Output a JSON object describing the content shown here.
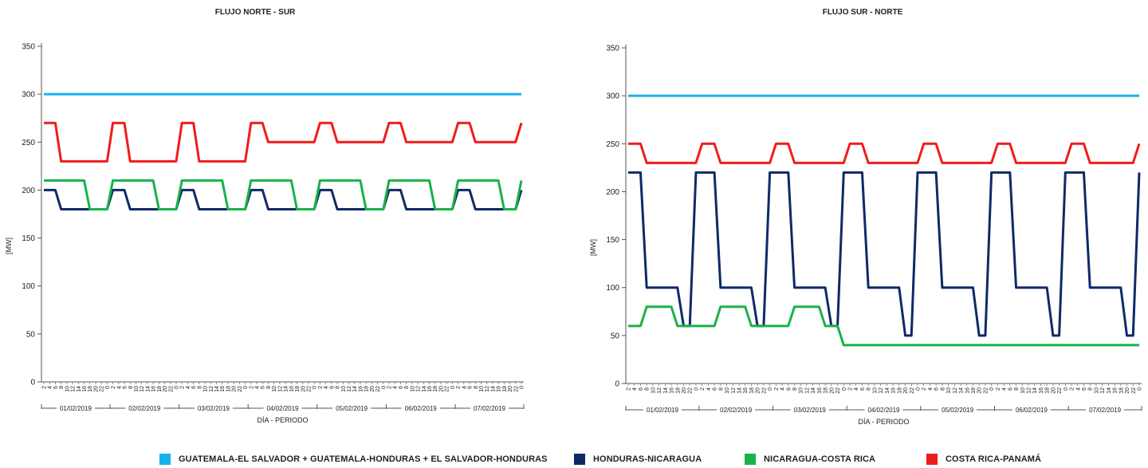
{
  "colors": {
    "guate_sal": "#17b1ec",
    "hond_nic": "#0e2a66",
    "nic_cr": "#19b24a",
    "cr_pan": "#ef1c1c",
    "axis": "#555555",
    "text": "#222222"
  },
  "legend": [
    {
      "label": "GUATEMALA-EL SALVADOR + GUATEMALA-HONDURAS + EL SALVADOR-HONDURAS",
      "color": "#17b1ec",
      "icon": "square-swatch"
    },
    {
      "label": "HONDURAS-NICARAGUA",
      "color": "#0e2a66",
      "icon": "square-swatch"
    },
    {
      "label": "NICARAGUA-COSTA RICA",
      "color": "#19b24a",
      "icon": "square-swatch"
    },
    {
      "label": "COSTA RICA-PANAMÁ",
      "color": "#ef1c1c",
      "icon": "square-swatch"
    }
  ],
  "chart_data": [
    {
      "type": "line",
      "title": "FLUJO NORTE - SUR",
      "xlabel": "DÍA - PERIODO",
      "ylabel": "[MW]",
      "ylim": [
        0,
        350
      ],
      "yticks": [
        0,
        50,
        100,
        150,
        200,
        250,
        300,
        350
      ],
      "grid": false,
      "hours": [
        "2",
        "4",
        "6",
        "8",
        "10",
        "12",
        "14",
        "16",
        "18",
        "20",
        "22",
        "0"
      ],
      "days": [
        "01/02/2019",
        "02/02/2019",
        "03/02/2019",
        "04/02/2019",
        "05/02/2019",
        "06/02/2019",
        "07/02/2019"
      ],
      "series": [
        {
          "name": "GUATEMALA-EL SALVADOR + GUATEMALA-HONDURAS + EL SALVADOR-HONDURAS",
          "color": "#17b1ec",
          "values": [
            300,
            300,
            300,
            300,
            300,
            300,
            300,
            300,
            300,
            300,
            300,
            300,
            300,
            300,
            300,
            300,
            300,
            300,
            300,
            300,
            300,
            300,
            300,
            300,
            300,
            300,
            300,
            300,
            300,
            300,
            300,
            300,
            300,
            300,
            300,
            300,
            300,
            300,
            300,
            300,
            300,
            300,
            300,
            300,
            300,
            300,
            300,
            300,
            300,
            300,
            300,
            300,
            300,
            300,
            300,
            300,
            300,
            300,
            300,
            300,
            300,
            300,
            300,
            300,
            300,
            300,
            300,
            300,
            300,
            300,
            300,
            300,
            300,
            300,
            300,
            300,
            300,
            300,
            300,
            300,
            300,
            300,
            300,
            300
          ]
        },
        {
          "name": "HONDURAS-NICARAGUA",
          "color": "#0e2a66",
          "values": [
            200,
            200,
            200,
            180,
            180,
            180,
            180,
            180,
            180,
            180,
            180,
            180,
            200,
            200,
            200,
            180,
            180,
            180,
            180,
            180,
            180,
            180,
            180,
            180,
            200,
            200,
            200,
            180,
            180,
            180,
            180,
            180,
            180,
            180,
            180,
            180,
            200,
            200,
            200,
            180,
            180,
            180,
            180,
            180,
            180,
            180,
            180,
            180,
            200,
            200,
            200,
            180,
            180,
            180,
            180,
            180,
            180,
            180,
            180,
            180,
            200,
            200,
            200,
            180,
            180,
            180,
            180,
            180,
            180,
            180,
            180,
            180,
            200,
            200,
            200,
            180,
            180,
            180,
            180,
            180,
            180,
            180,
            180,
            200
          ]
        },
        {
          "name": "NICARAGUA-COSTA RICA",
          "color": "#19b24a",
          "values": [
            210,
            210,
            210,
            210,
            210,
            210,
            210,
            210,
            180,
            180,
            180,
            180,
            210,
            210,
            210,
            210,
            210,
            210,
            210,
            210,
            180,
            180,
            180,
            180,
            210,
            210,
            210,
            210,
            210,
            210,
            210,
            210,
            180,
            180,
            180,
            180,
            210,
            210,
            210,
            210,
            210,
            210,
            210,
            210,
            180,
            180,
            180,
            180,
            210,
            210,
            210,
            210,
            210,
            210,
            210,
            210,
            180,
            180,
            180,
            180,
            210,
            210,
            210,
            210,
            210,
            210,
            210,
            210,
            180,
            180,
            180,
            180,
            210,
            210,
            210,
            210,
            210,
            210,
            210,
            210,
            180,
            180,
            180,
            210
          ]
        },
        {
          "name": "COSTA RICA-PANAMÁ",
          "color": "#ef1c1c",
          "values": [
            270,
            270,
            270,
            230,
            230,
            230,
            230,
            230,
            230,
            230,
            230,
            230,
            270,
            270,
            270,
            230,
            230,
            230,
            230,
            230,
            230,
            230,
            230,
            230,
            270,
            270,
            270,
            230,
            230,
            230,
            230,
            230,
            230,
            230,
            230,
            230,
            270,
            270,
            270,
            250,
            250,
            250,
            250,
            250,
            250,
            250,
            250,
            250,
            270,
            270,
            270,
            250,
            250,
            250,
            250,
            250,
            250,
            250,
            250,
            250,
            270,
            270,
            270,
            250,
            250,
            250,
            250,
            250,
            250,
            250,
            250,
            250,
            270,
            270,
            270,
            250,
            250,
            250,
            250,
            250,
            250,
            250,
            250,
            270
          ]
        }
      ]
    },
    {
      "type": "line",
      "title": "FLUJO SUR - NORTE",
      "xlabel": "DÍA - PERIODO",
      "ylabel": "[MW]",
      "ylim": [
        0,
        350
      ],
      "yticks": [
        0,
        50,
        100,
        150,
        200,
        250,
        300,
        350
      ],
      "grid": false,
      "hours": [
        "2",
        "4",
        "6",
        "8",
        "10",
        "12",
        "14",
        "16",
        "18",
        "20",
        "22",
        "0"
      ],
      "days": [
        "01/02/2019",
        "02/02/2019",
        "03/02/2019",
        "04/02/2019",
        "05/02/2019",
        "06/02/2019",
        "07/02/2019"
      ],
      "series": [
        {
          "name": "GUATEMALA-EL SALVADOR + GUATEMALA-HONDURAS + EL SALVADOR-HONDURAS",
          "color": "#17b1ec",
          "values": [
            300,
            300,
            300,
            300,
            300,
            300,
            300,
            300,
            300,
            300,
            300,
            300,
            300,
            300,
            300,
            300,
            300,
            300,
            300,
            300,
            300,
            300,
            300,
            300,
            300,
            300,
            300,
            300,
            300,
            300,
            300,
            300,
            300,
            300,
            300,
            300,
            300,
            300,
            300,
            300,
            300,
            300,
            300,
            300,
            300,
            300,
            300,
            300,
            300,
            300,
            300,
            300,
            300,
            300,
            300,
            300,
            300,
            300,
            300,
            300,
            300,
            300,
            300,
            300,
            300,
            300,
            300,
            300,
            300,
            300,
            300,
            300,
            300,
            300,
            300,
            300,
            300,
            300,
            300,
            300,
            300,
            300,
            300,
            300
          ]
        },
        {
          "name": "HONDURAS-NICARAGUA",
          "color": "#0e2a66",
          "values": [
            220,
            220,
            220,
            100,
            100,
            100,
            100,
            100,
            100,
            60,
            60,
            220,
            220,
            220,
            220,
            100,
            100,
            100,
            100,
            100,
            100,
            60,
            60,
            220,
            220,
            220,
            220,
            100,
            100,
            100,
            100,
            100,
            100,
            60,
            60,
            220,
            220,
            220,
            220,
            100,
            100,
            100,
            100,
            100,
            100,
            50,
            50,
            220,
            220,
            220,
            220,
            100,
            100,
            100,
            100,
            100,
            100,
            50,
            50,
            220,
            220,
            220,
            220,
            100,
            100,
            100,
            100,
            100,
            100,
            50,
            50,
            220,
            220,
            220,
            220,
            100,
            100,
            100,
            100,
            100,
            100,
            50,
            50,
            220
          ]
        },
        {
          "name": "NICARAGUA-COSTA RICA",
          "color": "#19b24a",
          "values": [
            60,
            60,
            60,
            80,
            80,
            80,
            80,
            80,
            60,
            60,
            60,
            60,
            60,
            60,
            60,
            80,
            80,
            80,
            80,
            80,
            60,
            60,
            60,
            60,
            60,
            60,
            60,
            80,
            80,
            80,
            80,
            80,
            60,
            60,
            60,
            40,
            40,
            40,
            40,
            40,
            40,
            40,
            40,
            40,
            40,
            40,
            40,
            40,
            40,
            40,
            40,
            40,
            40,
            40,
            40,
            40,
            40,
            40,
            40,
            40,
            40,
            40,
            40,
            40,
            40,
            40,
            40,
            40,
            40,
            40,
            40,
            40,
            40,
            40,
            40,
            40,
            40,
            40,
            40,
            40,
            40,
            40,
            40,
            40
          ]
        },
        {
          "name": "COSTA RICA-PANAMÁ",
          "color": "#ef1c1c",
          "values": [
            250,
            250,
            250,
            230,
            230,
            230,
            230,
            230,
            230,
            230,
            230,
            230,
            250,
            250,
            250,
            230,
            230,
            230,
            230,
            230,
            230,
            230,
            230,
            230,
            250,
            250,
            250,
            230,
            230,
            230,
            230,
            230,
            230,
            230,
            230,
            230,
            250,
            250,
            250,
            230,
            230,
            230,
            230,
            230,
            230,
            230,
            230,
            230,
            250,
            250,
            250,
            230,
            230,
            230,
            230,
            230,
            230,
            230,
            230,
            230,
            250,
            250,
            250,
            230,
            230,
            230,
            230,
            230,
            230,
            230,
            230,
            230,
            250,
            250,
            250,
            230,
            230,
            230,
            230,
            230,
            230,
            230,
            230,
            250
          ]
        }
      ]
    }
  ]
}
